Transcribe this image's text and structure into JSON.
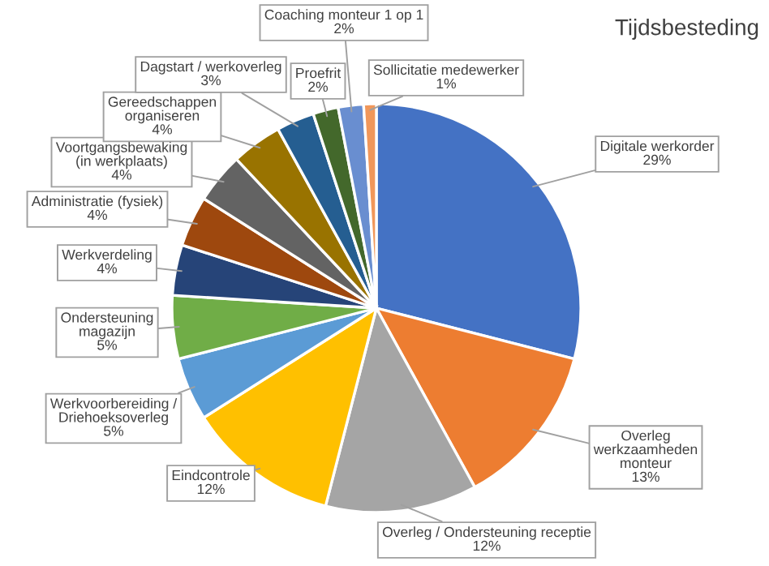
{
  "chart_data": {
    "type": "pie",
    "title": "Tijdsbesteding",
    "categories": [
      "Digitale werkorder",
      "Overleg\nwerkzaamheden\nmonteur",
      "Overleg / Ondersteuning receptie",
      "Eindcontrole",
      "Werkvoorbereiding /\nDriehoeksoverleg",
      "Ondersteuning\nmagazijn",
      "Werkverdeling",
      "Administratie (fysiek)",
      "Voortgangsbewaking\n(in werkplaats)",
      "Gereedschappen\norganiseren",
      "Dagstart / werkoverleg",
      "Proefrit",
      "Coaching monteur 1 op 1",
      "Sollicitatie medewerker"
    ],
    "values": [
      29,
      13,
      12,
      12,
      5,
      5,
      4,
      4,
      4,
      4,
      3,
      2,
      2,
      1
    ],
    "colors": [
      "#4472c4",
      "#ed7d31",
      "#a5a5a5",
      "#ffc000",
      "#5b9bd5",
      "#70ad47",
      "#264478",
      "#9e480e",
      "#636363",
      "#997300",
      "#255e91",
      "#43682b",
      "#698ed0",
      "#f1975a"
    ],
    "value_labels": [
      "29%",
      "13%",
      "12%",
      "12%",
      "5%",
      "5%",
      "4%",
      "4%",
      "4%",
      "4%",
      "3%",
      "2%",
      "2%",
      "1%"
    ],
    "legend": false
  }
}
